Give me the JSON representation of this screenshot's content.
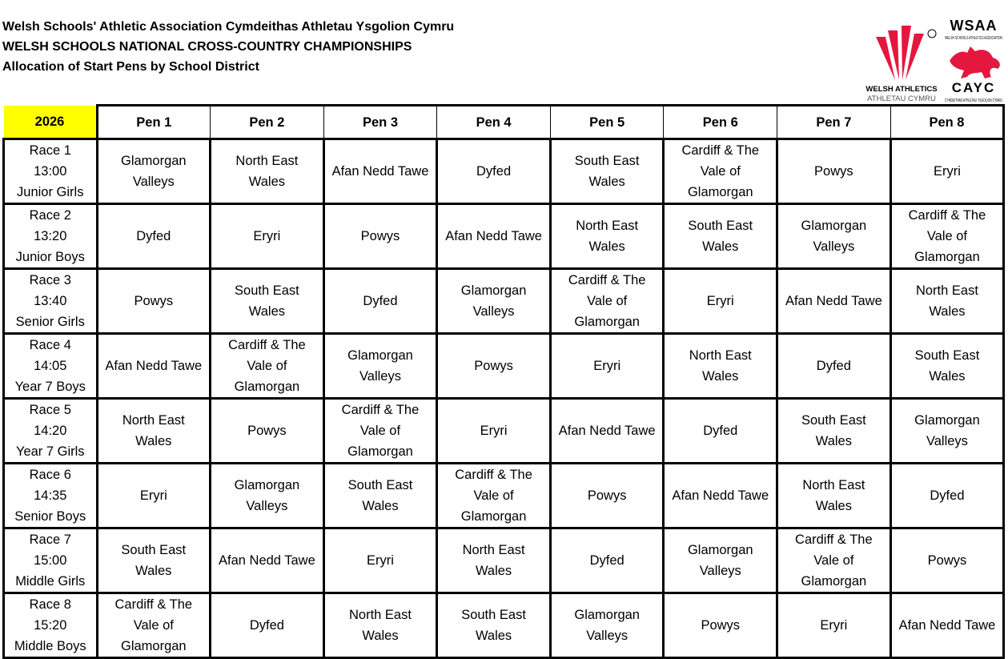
{
  "header": {
    "line1": "Welsh Schools' Athletic Association Cymdeithas Athletau Ysgolion Cymru",
    "line2": "WELSH SCHOOLS NATIONAL CROSS-COUNTRY CHAMPIONSHIPS",
    "line3": "Allocation of Start Pens by School District"
  },
  "logos": {
    "welsh_athletics": {
      "line1": "WELSH ATHLETICS",
      "line2": "ATHLETAU CYMRU",
      "color": "#e4173e"
    },
    "wsaa": {
      "title": "WSAA",
      "subtitle": "WELSH SCHOOLS ATHLETICS ASSOCIATION",
      "title2": "CAYC",
      "subtitle2": "CYMDEITHAS ATHLETAU YSGOLION CYMRU",
      "color": "#e4173e"
    }
  },
  "table": {
    "year": "2026",
    "year_color": "#ffff00",
    "pens": [
      "Pen 1",
      "Pen 2",
      "Pen 3",
      "Pen 4",
      "Pen 5",
      "Pen 6",
      "Pen 7",
      "Pen 8"
    ],
    "races": [
      {
        "race": "Race 1",
        "time": "13:00",
        "category": "Junior Girls",
        "pens": [
          "Glamorgan\nValleys",
          "North East\nWales",
          "Afan Nedd Tawe",
          "Dyfed",
          "South East\nWales",
          "Cardiff & The\nVale of\nGlamorgan",
          "Powys",
          "Eryri"
        ]
      },
      {
        "race": "Race 2",
        "time": "13:20",
        "category": "Junior Boys",
        "pens": [
          "Dyfed",
          "Eryri",
          "Powys",
          "Afan Nedd Tawe",
          "North East\nWales",
          "South East\nWales",
          "Glamorgan\nValleys",
          "Cardiff & The\nVale of\nGlamorgan"
        ]
      },
      {
        "race": "Race 3",
        "time": "13:40",
        "category": "Senior Girls",
        "pens": [
          "Powys",
          "South East\nWales",
          "Dyfed",
          "Glamorgan\nValleys",
          "Cardiff & The\nVale of\nGlamorgan",
          "Eryri",
          "Afan Nedd Tawe",
          "North East\nWales"
        ]
      },
      {
        "race": "Race 4",
        "time": "14:05",
        "category": "Year 7 Boys",
        "pens": [
          "Afan Nedd Tawe",
          "Cardiff & The\nVale of\nGlamorgan",
          "Glamorgan\nValleys",
          "Powys",
          "Eryri",
          "North East\nWales",
          "Dyfed",
          "South East\nWales"
        ]
      },
      {
        "race": "Race 5",
        "time": "14:20",
        "category": "Year 7 Girls",
        "pens": [
          "North East\nWales",
          "Powys",
          "Cardiff & The\nVale of\nGlamorgan",
          "Eryri",
          "Afan Nedd Tawe",
          "Dyfed",
          "South East\nWales",
          "Glamorgan\nValleys"
        ]
      },
      {
        "race": "Race 6",
        "time": "14:35",
        "category": "Senior Boys",
        "pens": [
          "Eryri",
          "Glamorgan\nValleys",
          "South East\nWales",
          "Cardiff & The\nVale of\nGlamorgan",
          "Powys",
          "Afan Nedd Tawe",
          "North East\nWales",
          "Dyfed"
        ]
      },
      {
        "race": "Race 7",
        "time": "15:00",
        "category": "Middle Girls",
        "pens": [
          "South East\nWales",
          "Afan Nedd Tawe",
          "Eryri",
          "North East\nWales",
          "Dyfed",
          "Glamorgan\nValleys",
          "Cardiff & The\nVale of\nGlamorgan",
          "Powys"
        ]
      },
      {
        "race": "Race 8",
        "time": "15:20",
        "category": "Middle Boys",
        "pens": [
          "Cardiff & The\nVale of\nGlamorgan",
          "Dyfed",
          "North East\nWales",
          "South East\nWales",
          "Glamorgan\nValleys",
          "Powys",
          "Eryri",
          "Afan Nedd Tawe"
        ]
      }
    ]
  }
}
